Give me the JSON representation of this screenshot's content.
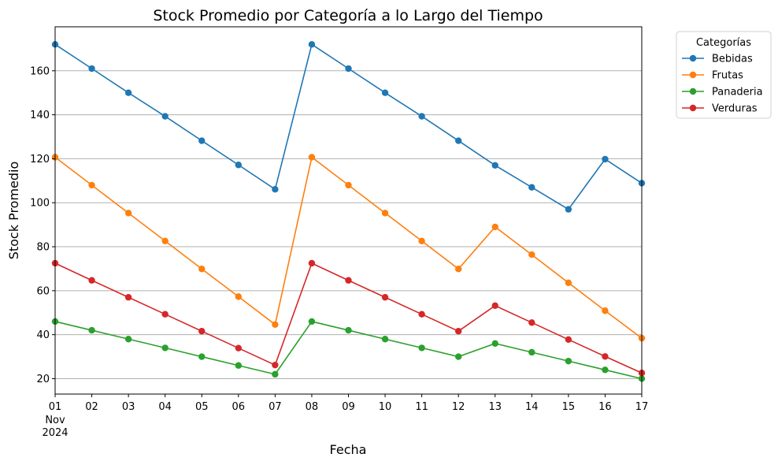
{
  "chart_data": {
    "type": "line",
    "title": "Stock Promedio por Categoría a lo Largo del Tiempo",
    "xlabel": "Fecha",
    "ylabel": "Stock Promedio",
    "x": [
      "01",
      "02",
      "03",
      "04",
      "05",
      "06",
      "07",
      "08",
      "09",
      "10",
      "11",
      "12",
      "13",
      "14",
      "15",
      "16",
      "17"
    ],
    "x_sublabel_month": "Nov",
    "x_sublabel_year": "2024",
    "ylim": [
      13,
      180
    ],
    "yticks": [
      20,
      40,
      60,
      80,
      100,
      120,
      140,
      160
    ],
    "grid": "horizontal",
    "legend_title": "Categorías",
    "legend_position": "outside-top-right",
    "series": [
      {
        "name": "Bebidas",
        "color": "#1f77b4",
        "values": [
          172,
          161,
          150,
          139.3,
          128.2,
          117.2,
          106.1,
          172,
          161,
          150,
          139.3,
          128.2,
          117,
          107,
          97,
          119.8,
          108.9
        ]
      },
      {
        "name": "Frutas",
        "color": "#ff7f0e",
        "values": [
          120.7,
          108,
          95.3,
          82.6,
          69.9,
          57.3,
          44.6,
          120.7,
          108,
          95.3,
          82.6,
          69.9,
          89,
          76.4,
          63.6,
          50.9,
          38.4
        ]
      },
      {
        "name": "Panaderia",
        "color": "#2ca02c",
        "values": [
          46,
          42,
          38,
          34,
          30,
          26,
          22,
          46,
          42,
          38,
          34,
          30,
          36,
          32,
          28,
          24,
          20
        ]
      },
      {
        "name": "Verduras",
        "color": "#d62728",
        "values": [
          72.5,
          64.7,
          57,
          49.3,
          41.6,
          33.9,
          26.2,
          72.5,
          64.7,
          57,
          49.3,
          41.6,
          53.2,
          45.5,
          37.8,
          30.1,
          22.6
        ]
      }
    ]
  }
}
